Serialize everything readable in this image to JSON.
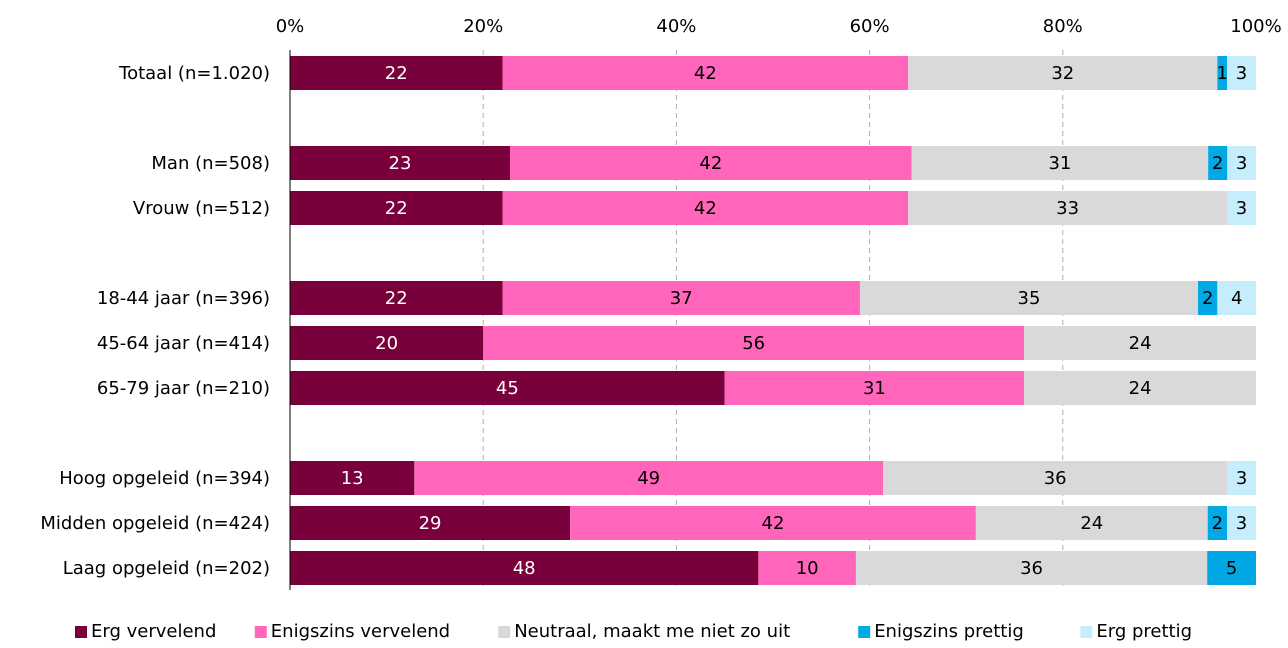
{
  "chart_data": {
    "type": "bar",
    "orientation": "horizontal",
    "stacked": "percent",
    "x_ticks": [
      "0%",
      "20%",
      "40%",
      "60%",
      "80%",
      "100%"
    ],
    "xlim": [
      0,
      100
    ],
    "grid": true,
    "legend_position": "bottom",
    "categories": [
      "Totaal (n=1.020)",
      "",
      "Man (n=508)",
      "Vrouw (n=512)",
      "",
      "18-44 jaar (n=396)",
      "45-64 jaar (n=414)",
      "65-79 jaar (n=210)",
      "",
      "Hoog opgeleid (n=394)",
      "Midden opgeleid (n=424)",
      "Laag opgeleid (n=202)"
    ],
    "series": [
      {
        "name": "Erg vervelend",
        "color": "#7a003c",
        "label_color": "#ffffff",
        "values": [
          22,
          null,
          23,
          22,
          null,
          22,
          20,
          45,
          null,
          13,
          29,
          48
        ]
      },
      {
        "name": "Enigszins vervelend",
        "color": "#ff66bb",
        "label_color": "#000000",
        "values": [
          42,
          null,
          42,
          42,
          null,
          37,
          56,
          31,
          null,
          49,
          42,
          10
        ]
      },
      {
        "name": "Neutraal, maakt me niet zo uit",
        "color": "#d9d9d9",
        "label_color": "#000000",
        "values": [
          32,
          null,
          31,
          33,
          null,
          35,
          24,
          24,
          null,
          36,
          24,
          36
        ]
      },
      {
        "name": "Enigszins prettig",
        "color": "#00a8e6",
        "label_color": "#000000",
        "values": [
          1,
          null,
          2,
          0,
          null,
          2,
          0,
          0,
          null,
          0,
          2,
          5
        ]
      },
      {
        "name": "Erg prettig",
        "color": "#c6edfb",
        "label_color": "#000000",
        "values": [
          3,
          null,
          3,
          3,
          null,
          4,
          0,
          0,
          null,
          3,
          3,
          0
        ]
      }
    ]
  }
}
